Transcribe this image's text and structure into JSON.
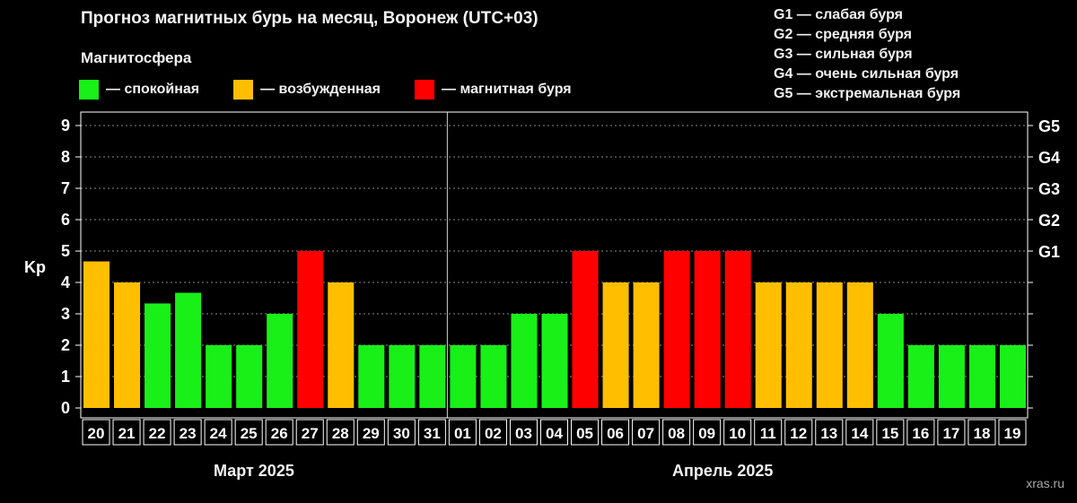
{
  "title": "Прогноз магнитных бурь на месяц, Воронеж (UTC+03)",
  "legend": {
    "title": "Магнитосфера",
    "items": [
      {
        "label": "— спокойная",
        "color": "#18f018"
      },
      {
        "label": "— возбужденная",
        "color": "#ffbf00"
      },
      {
        "label": "— магнитная буря",
        "color": "#ff0000"
      }
    ]
  },
  "g_legend": [
    "G1 — слабая буря",
    "G2 — средняя буря",
    "G3 — сильная буря",
    "G4 — очень сильная буря",
    "G5 — экстремальная буря"
  ],
  "kp_label": "Kp",
  "months": {
    "march": "Март 2025",
    "april": "Апрель 2025"
  },
  "watermark": "xras.ru",
  "chart_data": {
    "type": "bar",
    "categories": [
      "20",
      "21",
      "22",
      "23",
      "24",
      "25",
      "26",
      "27",
      "28",
      "29",
      "30",
      "31",
      "01",
      "02",
      "03",
      "04",
      "05",
      "06",
      "07",
      "08",
      "09",
      "10",
      "11",
      "12",
      "13",
      "14",
      "15",
      "16",
      "17",
      "18",
      "19"
    ],
    "values": [
      4.67,
      4,
      3.33,
      3.67,
      2,
      2,
      3,
      5,
      4,
      2,
      2,
      2,
      2,
      2,
      3,
      3,
      5,
      4,
      4,
      5,
      5,
      5,
      4,
      4,
      4,
      4,
      3,
      2,
      2,
      2,
      2
    ],
    "level": [
      "active",
      "active",
      "quiet",
      "quiet",
      "quiet",
      "quiet",
      "quiet",
      "storm",
      "active",
      "quiet",
      "quiet",
      "quiet",
      "quiet",
      "quiet",
      "quiet",
      "quiet",
      "storm",
      "active",
      "active",
      "storm",
      "storm",
      "storm",
      "active",
      "active",
      "active",
      "active",
      "quiet",
      "quiet",
      "quiet",
      "quiet",
      "quiet"
    ],
    "colors": {
      "quiet": "#18f018",
      "active": "#ffbf00",
      "storm": "#ff0000"
    },
    "ylabel": "Kp",
    "ylim": [
      0,
      9
    ],
    "yticks": [
      "0",
      "1",
      "2",
      "3",
      "4",
      "5",
      "6",
      "7",
      "8",
      "9"
    ],
    "right_ticks": [
      {
        "kp": 5,
        "label": "G1"
      },
      {
        "kp": 6,
        "label": "G2"
      },
      {
        "kp": 7,
        "label": "G3"
      },
      {
        "kp": 8,
        "label": "G4"
      },
      {
        "kp": 9,
        "label": "G5"
      }
    ],
    "grid": true
  }
}
